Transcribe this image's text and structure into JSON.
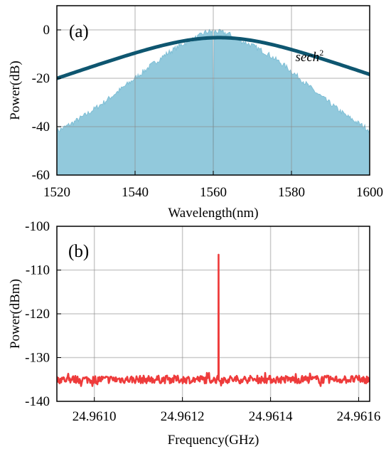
{
  "chart_data": [
    {
      "type": "area",
      "panel_label": "(a)",
      "xlabel": "Wavelength(nm)",
      "ylabel": "Power(dB)",
      "xlim": [
        1520,
        1600
      ],
      "ylim": [
        -60,
        10
      ],
      "xticks": [
        1520,
        1540,
        1560,
        1580,
        1600
      ],
      "yticks": [
        0,
        -20,
        -40,
        -60
      ],
      "grid": true,
      "annotation": {
        "text": "sech",
        "superscript": "2",
        "x": 1581,
        "y": -13
      },
      "colors": {
        "fill": "#92c9dc",
        "fit": "#0e5670"
      },
      "series": [
        {
          "kind": "measured-spectrum",
          "x": [
            1520,
            1524,
            1528,
            1532,
            1536,
            1540,
            1544,
            1548,
            1552,
            1556,
            1558,
            1560,
            1562,
            1564,
            1566,
            1570,
            1574,
            1578,
            1582,
            1586,
            1590,
            1594,
            1598,
            1600
          ],
          "y": [
            -42,
            -38.5,
            -34.5,
            -30,
            -25,
            -20,
            -14.8,
            -10,
            -6,
            -3,
            -1,
            -0.5,
            -1,
            -1.7,
            -3.8,
            -6.5,
            -10,
            -14.5,
            -19.8,
            -25.5,
            -30.5,
            -35.5,
            -39.5,
            -41.5
          ]
        },
        {
          "kind": "sech2-fit",
          "center": 1561.5,
          "peak": -3.2,
          "width_nm": 15.8
        }
      ]
    },
    {
      "type": "line",
      "panel_label": "(b)",
      "xlabel": "Frequency(GHz)",
      "ylabel": "Power(dBm)",
      "xlim": [
        24.960915,
        24.961625
      ],
      "ylim": [
        -140,
        -100
      ],
      "xticks": [
        24.961,
        24.9612,
        24.9614,
        24.9616
      ],
      "xtick_labels": [
        "24.9610",
        "24.9612",
        "24.9614",
        "24.9616"
      ],
      "yticks": [
        -100,
        -110,
        -120,
        -130,
        -140
      ],
      "grid": true,
      "colors": {
        "line": "#ee3b3b"
      },
      "series": [
        {
          "kind": "rf-spectrum",
          "noise_floor": -135,
          "noise_range": [
            -136.5,
            -133.5
          ],
          "peak_x": 24.961282,
          "peak_y": -106.5
        }
      ]
    }
  ]
}
